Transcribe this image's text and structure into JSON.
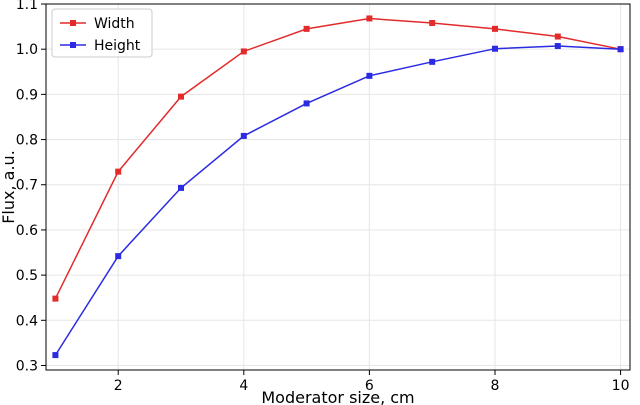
{
  "chart_data": {
    "type": "line",
    "xlabel": "Moderator size, cm",
    "ylabel": "Flux, a.u.",
    "xlim": [
      0.85,
      10.15
    ],
    "ylim": [
      0.29,
      1.1
    ],
    "xticks": [
      2,
      4,
      6,
      8,
      10
    ],
    "yticks": [
      0.3,
      0.4,
      0.5,
      0.6,
      0.7,
      0.8,
      0.9,
      1.0,
      1.1
    ],
    "ytick_labels": [
      "0.3",
      "0.4",
      "0.5",
      "0.6",
      "0.7",
      "0.8",
      "0.9",
      "1.0",
      "1.1"
    ],
    "grid": true,
    "legend_position": "top-left",
    "x": [
      1,
      2,
      3,
      4,
      5,
      6,
      7,
      8,
      9,
      10
    ],
    "series": [
      {
        "name": "Width",
        "color": "#e32b2b",
        "marker": "square",
        "values": [
          0.448,
          0.729,
          0.895,
          0.995,
          1.045,
          1.068,
          1.058,
          1.045,
          1.028,
          1.0
        ]
      },
      {
        "name": "Height",
        "color": "#2b2be3",
        "marker": "square",
        "values": [
          0.323,
          0.542,
          0.693,
          0.808,
          0.88,
          0.941,
          0.972,
          1.001,
          1.007,
          1.0
        ]
      }
    ]
  }
}
